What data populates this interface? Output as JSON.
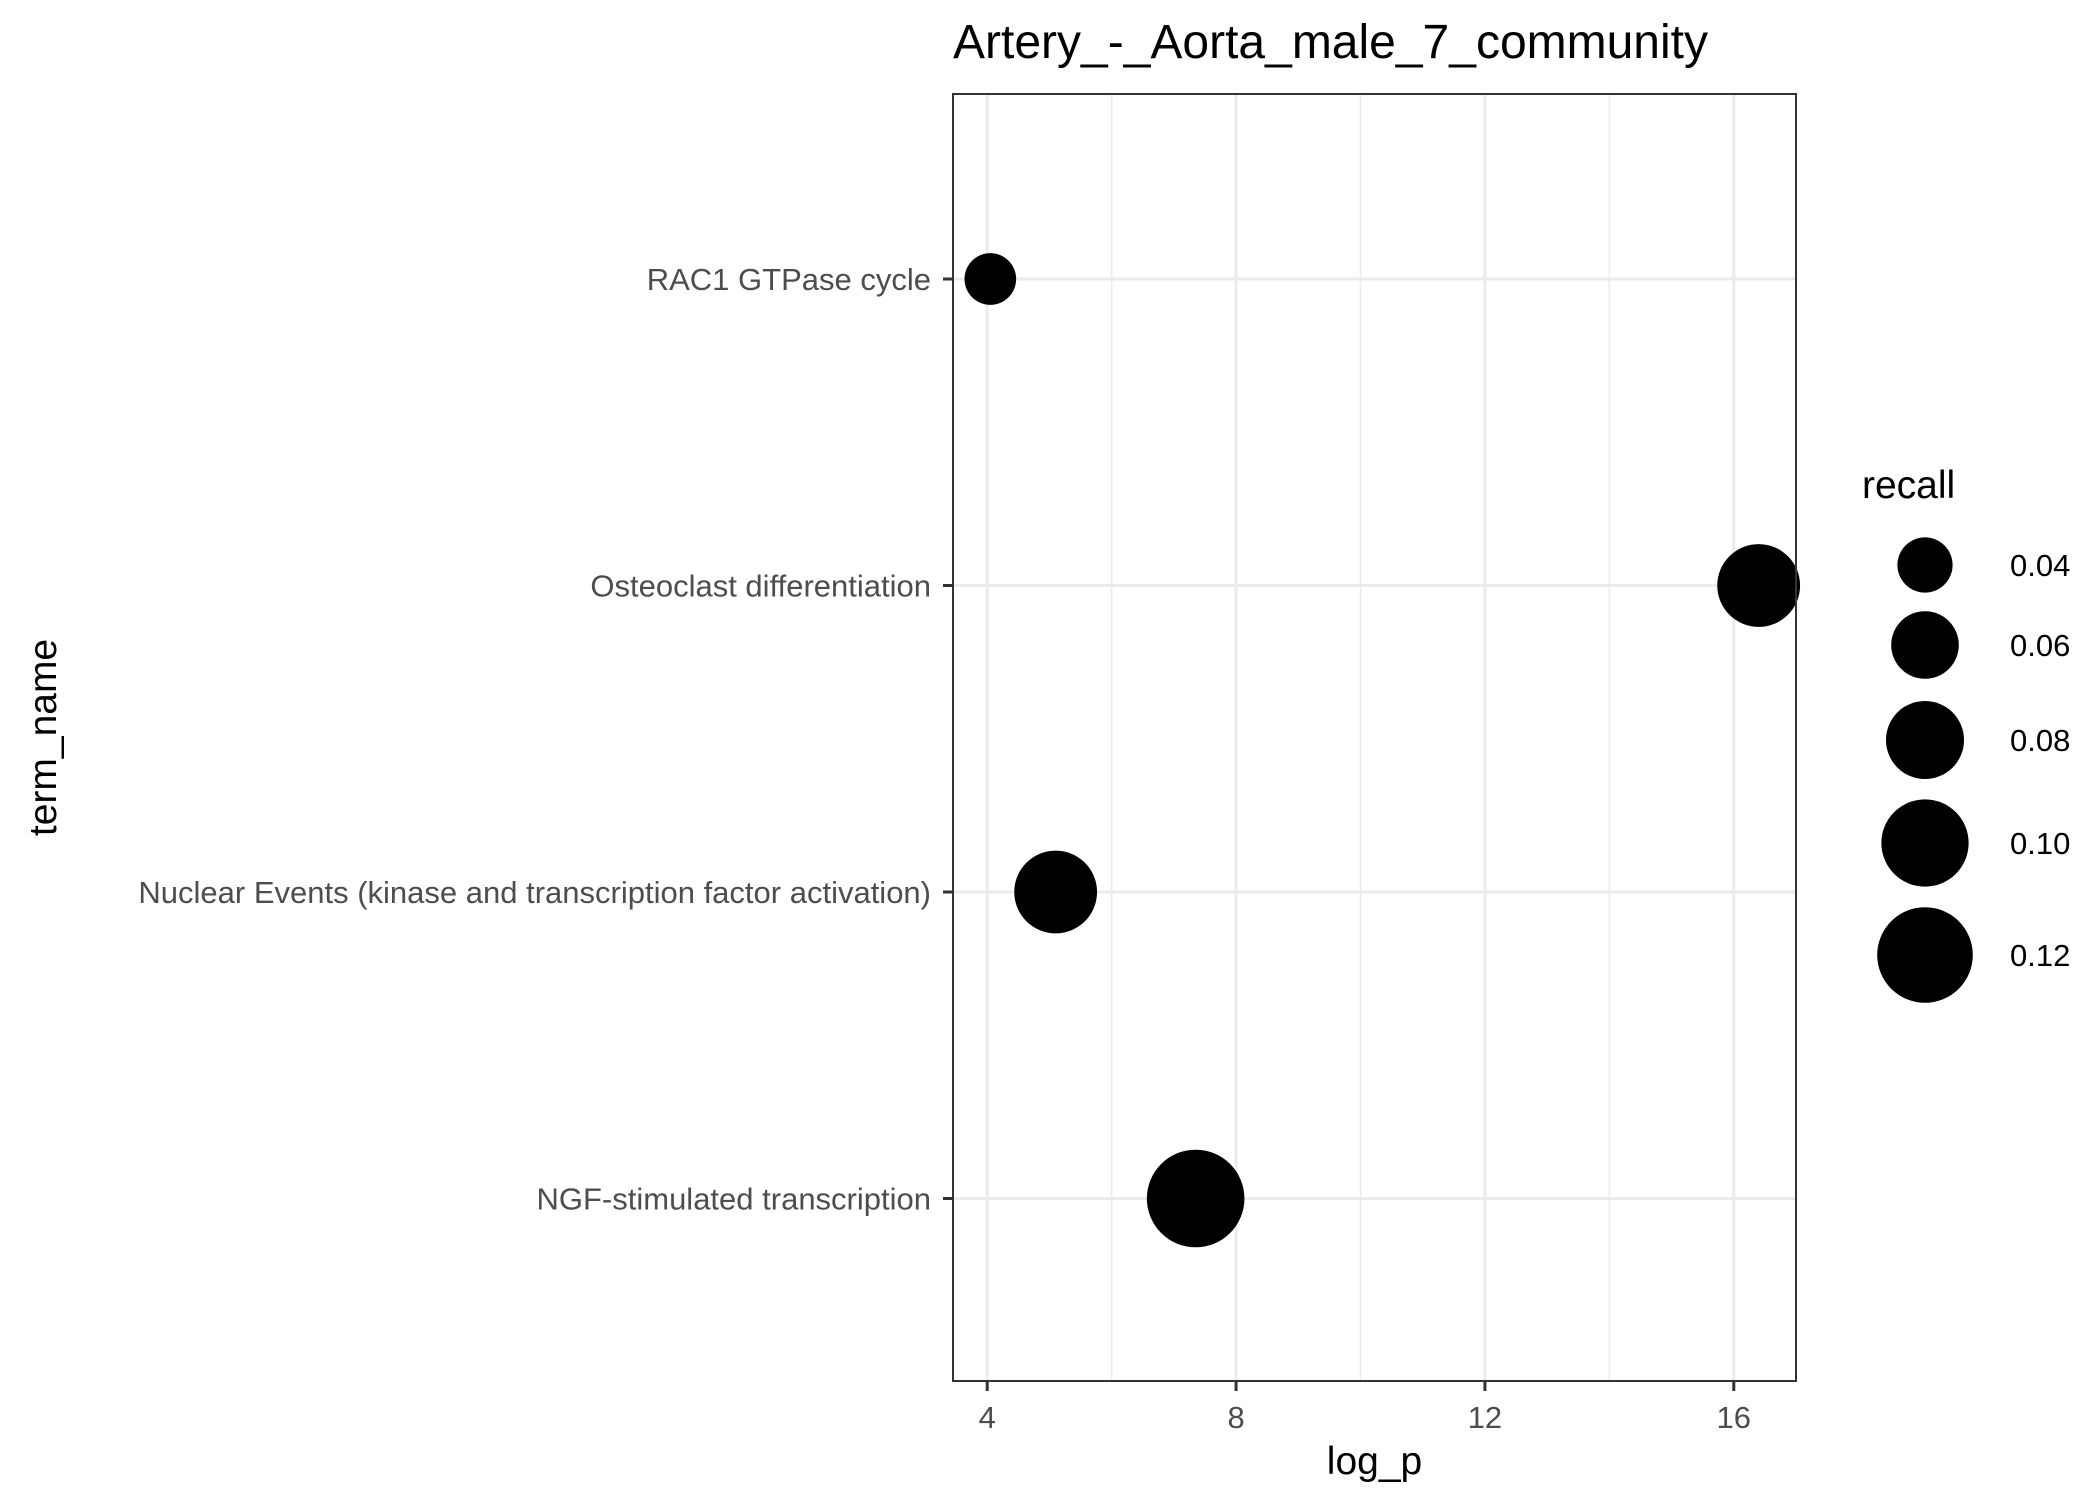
{
  "chart_data": {
    "type": "scatter",
    "title": "Artery_-_Aorta_male_7_community",
    "xlabel": "log_p",
    "ylabel": "term_name",
    "xlim": [
      3.45,
      17.0
    ],
    "x_ticks": [
      4,
      8,
      12,
      16
    ],
    "x_tick_labels": [
      "4",
      "8",
      "12",
      "16"
    ],
    "x_minor_ticks": [
      6,
      10,
      14
    ],
    "grid": true,
    "categories": [
      "RAC1 GTPase cycle",
      "Osteoclast differentiation",
      "Nuclear Events (kinase and transcription factor activation)",
      "NGF-stimulated transcription"
    ],
    "points": [
      {
        "term_name": "RAC1 GTPase cycle",
        "log_p": 4.05,
        "recall": 0.035
      },
      {
        "term_name": "Osteoclast differentiation",
        "log_p": 16.4,
        "recall": 0.09
      },
      {
        "term_name": "Nuclear Events (kinase and transcription factor activation)",
        "log_p": 5.1,
        "recall": 0.09
      },
      {
        "term_name": "NGF-stimulated transcription",
        "log_p": 7.35,
        "recall": 0.125
      }
    ],
    "size_legend": {
      "title": "recall",
      "placement": "right",
      "values": [
        0.04,
        0.06,
        0.08,
        0.1,
        0.12
      ],
      "labels": [
        "0.04",
        "0.06",
        "0.08",
        "0.10",
        "0.12"
      ]
    },
    "point_color": "#000000",
    "grid_color": "#ebebeb",
    "panel_border_color": "#333333"
  }
}
